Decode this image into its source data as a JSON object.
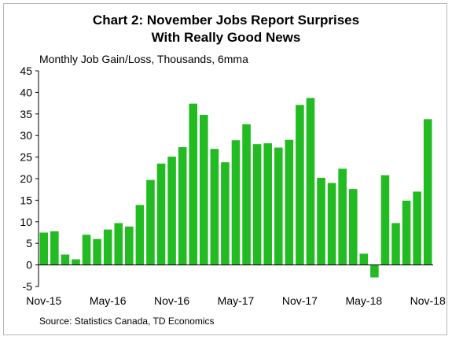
{
  "chart_data": {
    "type": "bar",
    "title": "Chart 2: November Jobs Report Surprises",
    "title_line2": "With Really Good News",
    "subtitle": "Monthly Job Gain/Loss, Thousands, 6mma",
    "source": "Source: Statistics Canada, TD Economics",
    "x_tick_labels": [
      "Nov-15",
      "May-16",
      "Nov-16",
      "May-17",
      "Nov-17",
      "May-18",
      "Nov-18"
    ],
    "y_ticks": [
      -5,
      0,
      5,
      10,
      15,
      20,
      25,
      30,
      35,
      40,
      45
    ],
    "ylim": [
      -5,
      45
    ],
    "bar_color": "#22bb22",
    "grid": false,
    "categories": [
      "Nov-15",
      "Dec-15",
      "Jan-16",
      "Feb-16",
      "Mar-16",
      "Apr-16",
      "May-16",
      "Jun-16",
      "Jul-16",
      "Aug-16",
      "Sep-16",
      "Oct-16",
      "Nov-16",
      "Dec-16",
      "Jan-17",
      "Feb-17",
      "Mar-17",
      "Apr-17",
      "May-17",
      "Jun-17",
      "Jul-17",
      "Aug-17",
      "Sep-17",
      "Oct-17",
      "Nov-17",
      "Dec-17",
      "Jan-18",
      "Feb-18",
      "Mar-18",
      "Apr-18",
      "May-18",
      "Jun-18",
      "Jul-18",
      "Aug-18",
      "Sep-18",
      "Oct-18",
      "Nov-18"
    ],
    "values": [
      7.5,
      7.8,
      2.4,
      1.3,
      7.0,
      6.0,
      8.2,
      9.7,
      8.9,
      13.9,
      19.7,
      23.5,
      25.1,
      27.3,
      37.4,
      34.8,
      26.9,
      23.8,
      28.9,
      32.6,
      28.0,
      28.2,
      27.2,
      29.0,
      37.1,
      38.7,
      20.2,
      19.0,
      22.3,
      17.6,
      2.6,
      -2.9,
      20.8,
      9.7,
      14.9,
      17.0,
      33.8
    ]
  }
}
